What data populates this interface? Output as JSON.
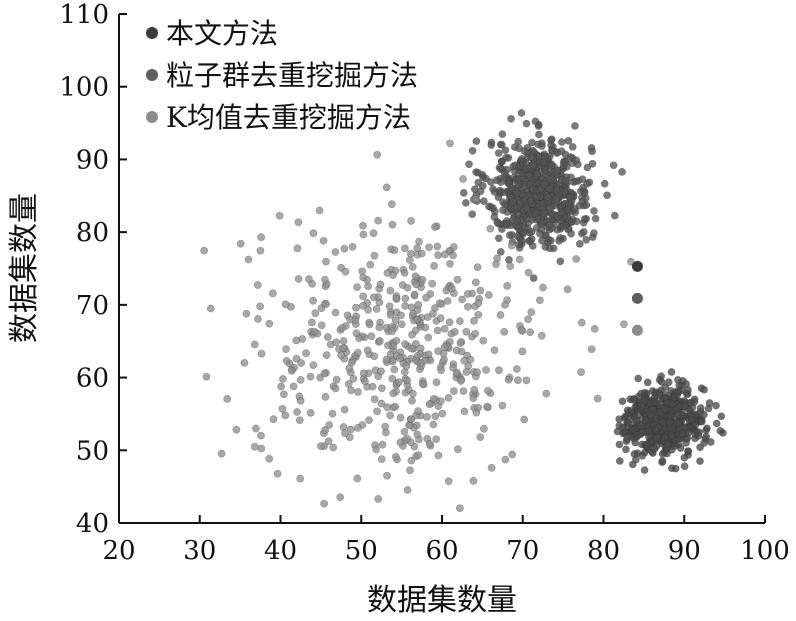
{
  "chart_data": {
    "type": "scatter",
    "xlabel": "数据集数量",
    "ylabel": "数据集数量",
    "xlim": [
      20,
      100
    ],
    "ylim": [
      40,
      110
    ],
    "xticks": [
      20,
      30,
      40,
      50,
      60,
      70,
      80,
      90,
      100
    ],
    "yticks": [
      40,
      50,
      60,
      70,
      80,
      90,
      100,
      110
    ],
    "grid": false,
    "legend_position": "top-left",
    "series": [
      {
        "name": "本文方法",
        "color": "#3a3a3a",
        "points": [
          [
            84.2,
            75.3
          ]
        ]
      },
      {
        "name": "粒子群去重挖掘方法",
        "color": "#5e5e5e",
        "points": [
          [
            84.2,
            70.9
          ]
        ]
      },
      {
        "name": "K均值去重挖掘方法",
        "color": "#8c8c8c",
        "points": [
          [
            84.2,
            66.5
          ]
        ]
      }
    ],
    "clusters": [
      {
        "center": [
          72,
          85.5
        ],
        "spread": [
          3.2,
          3.6
        ],
        "count": 650,
        "color": "#555555"
      },
      {
        "center": [
          87.5,
          54
        ],
        "spread": [
          2.5,
          2.4
        ],
        "count": 500,
        "color": "#4a4a4a"
      },
      {
        "center": [
          55,
          64
        ],
        "spread": [
          9,
          8.5
        ],
        "count": 520,
        "color": "#8f8f8f"
      }
    ]
  }
}
